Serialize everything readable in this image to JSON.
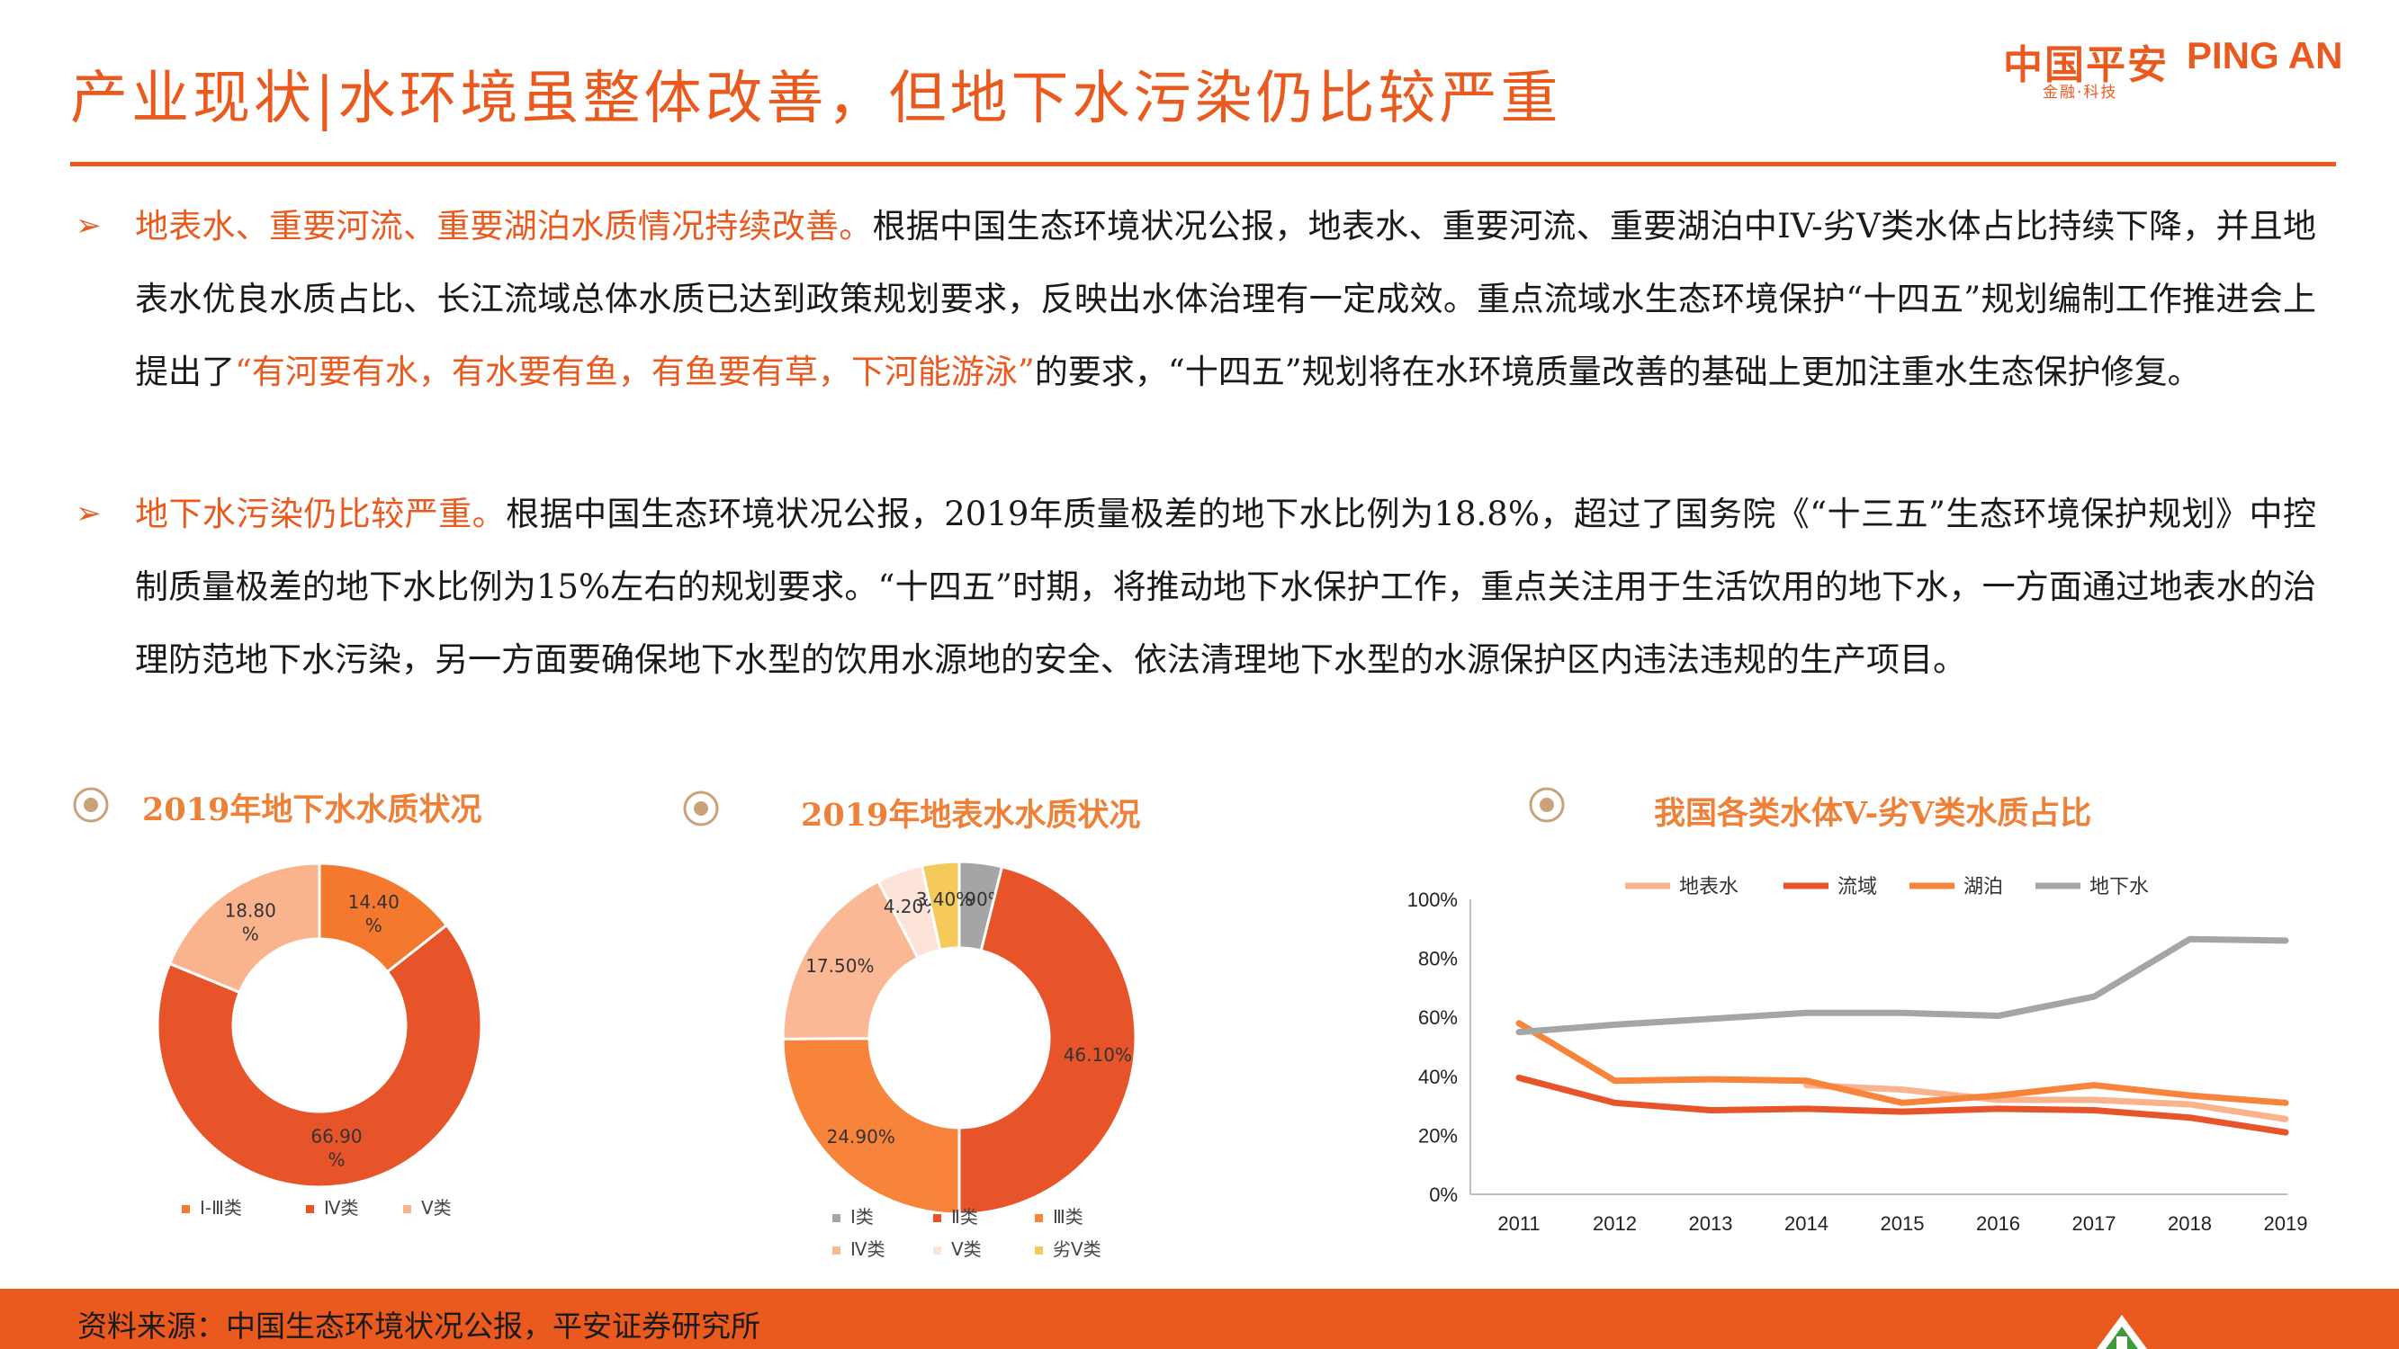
{
  "header": {
    "title": "产业现状|水环境虽整体改善，但地下水污染仍比较严重",
    "logo_cn": "中国平安",
    "logo_en": "PING AN",
    "logo_sub": "金融·科技"
  },
  "bullets": [
    {
      "highlight": "地表水、重要河流、重要湖泊水质情况持续改善。",
      "text1": "根据中国生态环境状况公报，地表水、重要河流、重要湖泊中IV-劣V类水体占比持续下降，并且地表水优良水质占比、长江流域总体水质已达到政策规划要求，反映出水体治理有一定成效。重点流域水生态环境保护“十四五”规划编制工作推进会上提出了",
      "quote": "“有河要有水，有水要有鱼，有鱼要有草，下河能游泳”",
      "text2": "的要求，“十四五”规划将在水环境质量改善的基础上更加注重水生态保护修复。"
    },
    {
      "highlight": "地下水污染仍比较严重。",
      "text1": "根据中国生态环境状况公报，2019年质量极差的地下水比例为18.8%，超过了国务院《“十三五”生态环境保护规划》中控制质量极差的地下水比例为15%左右的规划要求。“十四五”时期，将推动地下水保护工作，重点关注用于生活饮用的地下水，一方面通过地表水的治理防范地下水污染，另一方面要确保地下水型的饮用水源地的安全、依法清理地下水型的水源保护区内违法违规的生产项目。"
    }
  ],
  "chart_data": [
    {
      "type": "pie",
      "title": "2019年地下水水质状况",
      "categories": [
        "Ⅰ-Ⅲ类",
        "Ⅳ类",
        "Ⅴ类"
      ],
      "values": [
        14.4,
        66.9,
        18.8
      ],
      "labels": [
        "14.40%",
        "66.90%",
        "18.80%"
      ],
      "colors": [
        "#f4782e",
        "#e8542a",
        "#f9b48e"
      ],
      "legend": "bottom"
    },
    {
      "type": "pie",
      "title": "2019年地表水水质状况",
      "categories": [
        "Ⅰ类",
        "Ⅱ类",
        "Ⅲ类",
        "Ⅳ类",
        "Ⅴ类",
        "劣Ⅴ类"
      ],
      "values": [
        3.9,
        46.1,
        24.9,
        17.5,
        4.2,
        3.4
      ],
      "labels": [
        "3.90%",
        "46.10%",
        "24.90%",
        "17.50%",
        "4.20%",
        "3.40%"
      ],
      "colors": [
        "#a5a5a5",
        "#e8542a",
        "#f8843c",
        "#fbb894",
        "#fce4d8",
        "#f5c95a"
      ],
      "legend": "bottom"
    },
    {
      "type": "line",
      "title": "我国各类水体V-劣V类水质占比",
      "x": [
        2011,
        2012,
        2013,
        2014,
        2015,
        2016,
        2017,
        2018,
        2019
      ],
      "ylim": [
        0,
        100
      ],
      "yticks": [
        "0%",
        "20%",
        "40%",
        "60%",
        "80%",
        "100%"
      ],
      "series": [
        {
          "name": "地表水",
          "values": [
            null,
            null,
            null,
            37,
            35.5,
            32,
            32,
            30.5,
            25.5
          ],
          "color": "#f9b48e"
        },
        {
          "name": "流域",
          "values": [
            39.5,
            31,
            28.5,
            29,
            28,
            29,
            28.5,
            26,
            21
          ],
          "color": "#e8542a"
        },
        {
          "name": "湖泊",
          "values": [
            58,
            38.5,
            39,
            38.5,
            31,
            33.5,
            37,
            33.5,
            31
          ],
          "color": "#f8843c"
        },
        {
          "name": "地下水",
          "values": [
            55,
            57.5,
            59.5,
            61.5,
            61.5,
            60.5,
            67,
            86.5,
            86
          ],
          "color": "#a5a5a5"
        }
      ],
      "legend": "top",
      "grid": false
    }
  ],
  "footer": {
    "source": "资料来源：中国生态环境状况公报，平安证券研究所"
  }
}
